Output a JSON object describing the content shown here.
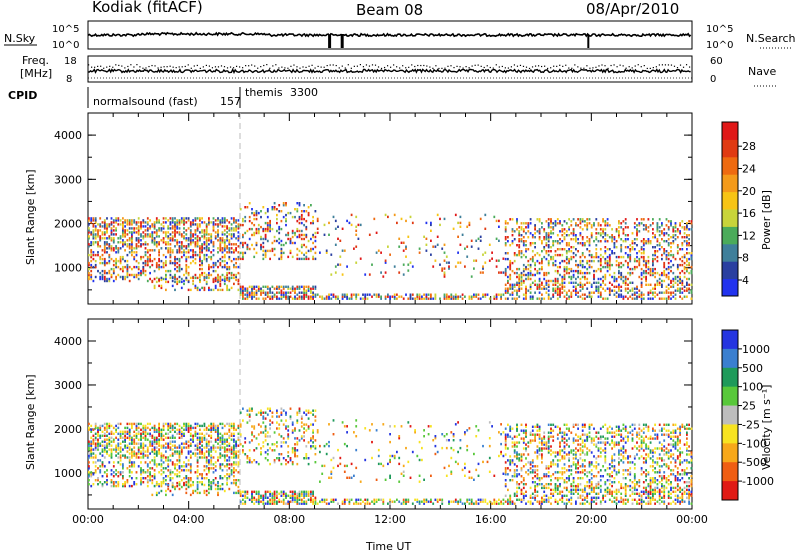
{
  "header": {
    "station": "Kodiak (fitACF)",
    "beam": "Beam 08",
    "date": "08/Apr/2010"
  },
  "status_strip": {
    "nsky_label": "N.Sky",
    "nsky_ticks": [
      "10^5",
      "10^0"
    ],
    "nsearch_label": "N.Search",
    "nsearch_ticks": [
      "10^5",
      "10^0"
    ],
    "freq_label_line1": "Freq.",
    "freq_label_line2": "[MHz]",
    "freq_ticks": [
      "18",
      "8"
    ],
    "nave_label": "Nave",
    "nave_ticks": [
      "60",
      "0"
    ],
    "cpid_label": "CPID",
    "cpid_modes": [
      {
        "name": "normalsound (fast)",
        "id": "157"
      },
      {
        "name": "themis",
        "id": "3300"
      }
    ]
  },
  "chart_data": [
    {
      "type": "heatmap",
      "name": "Power",
      "ylabel": "Slant Range [km]",
      "xlabel": "",
      "x_tick_labels": [
        "00:00",
        "04:00",
        "08:00",
        "12:00",
        "16:00",
        "20:00",
        "00:00"
      ],
      "x_ticks_hours": [
        0,
        4,
        8,
        12,
        16,
        20,
        24
      ],
      "y_ticks": [
        1000,
        2000,
        3000,
        4000
      ],
      "ylim": [
        180,
        4500
      ],
      "xlim_hours": [
        0,
        24
      ],
      "mode_change_hour": 5.9,
      "colorbar": {
        "label": "Power [dB]",
        "ticks": [
          "4",
          "8",
          "12",
          "16",
          "20",
          "24",
          "28"
        ],
        "colors_bottom_to_top": [
          "#2233ee",
          "#2a3fa0",
          "#3f7f9a",
          "#4bab5a",
          "#c8d43a",
          "#f7c414",
          "#f49a1a",
          "#ee6a10",
          "#e03a12",
          "#e01818"
        ]
      }
    },
    {
      "type": "heatmap",
      "name": "Velocity",
      "ylabel": "Slant Range [km]",
      "xlabel": "Time UT",
      "x_tick_labels": [
        "00:00",
        "04:00",
        "08:00",
        "12:00",
        "16:00",
        "20:00",
        "00:00"
      ],
      "x_ticks_hours": [
        0,
        4,
        8,
        12,
        16,
        20,
        24
      ],
      "y_ticks": [
        1000,
        2000,
        3000,
        4000
      ],
      "ylim": [
        180,
        4500
      ],
      "xlim_hours": [
        0,
        24
      ],
      "mode_change_hour": 5.9,
      "colorbar": {
        "label": "Velocity [m s⁻¹]",
        "ticks": [
          "1000",
          "500",
          "100",
          "25",
          "-25",
          "-100",
          "-500",
          "-1000"
        ],
        "colors_top_to_bottom": [
          "#2535e0",
          "#3a7fd0",
          "#1f9a5a",
          "#58c83a",
          "#bdbdbd",
          "#f7e320",
          "#f7a81a",
          "#ef5e12",
          "#e01a14"
        ]
      }
    }
  ]
}
